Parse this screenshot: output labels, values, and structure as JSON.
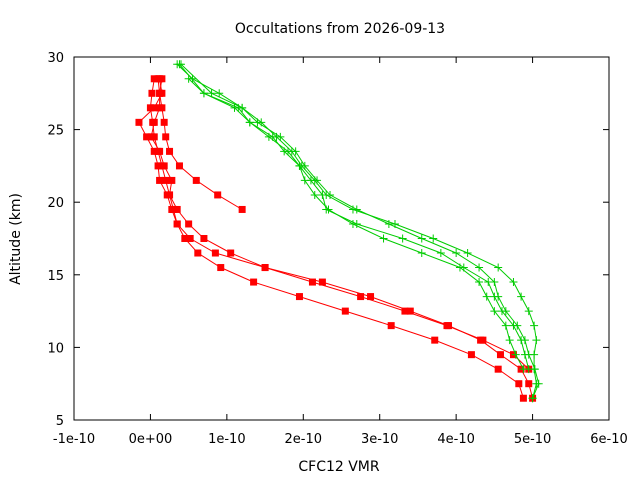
{
  "chart_data": {
    "type": "line",
    "title": "Occultations from 2026-09-13",
    "xlabel": "CFC12 VMR",
    "ylabel": "Altitude (km)",
    "xlim": [
      -1e-10,
      6e-10
    ],
    "ylim": [
      5,
      30
    ],
    "x_ticks": [
      -1e-10,
      0,
      1e-10,
      2e-10,
      3e-10,
      4e-10,
      5e-10,
      6e-10
    ],
    "x_tick_labels": [
      "-1e-10",
      "0e+00",
      "1e-10",
      "2e-10",
      "3e-10",
      "4e-10",
      "5e-10",
      "6e-10"
    ],
    "y_ticks": [
      5,
      10,
      15,
      20,
      25,
      30
    ],
    "y_tick_labels": [
      "5",
      "10",
      "15",
      "20",
      "25",
      "30"
    ],
    "grid": false,
    "legend": "none",
    "colors": {
      "red": "#ff0000",
      "green": "#00cc00"
    },
    "series": [
      {
        "color": "red",
        "marker": "square",
        "points": [
          [
            1.2e-10,
            19.5
          ],
          [
            8.8e-11,
            20.5
          ],
          [
            6e-11,
            21.5
          ],
          [
            3.8e-11,
            22.5
          ],
          [
            2.5e-11,
            23.5
          ],
          [
            2e-11,
            24.5
          ],
          [
            1.8e-11,
            25.5
          ],
          [
            1.5e-11,
            26.5
          ],
          [
            1.2e-11,
            27.5
          ],
          [
            1e-11,
            28.5
          ]
        ]
      },
      {
        "color": "red",
        "marker": "square",
        "points": [
          [
            5e-10,
            6.5
          ],
          [
            4.95e-10,
            7.5
          ],
          [
            4.85e-10,
            8.5
          ],
          [
            4.58e-10,
            9.5
          ],
          [
            4.32e-10,
            10.5
          ],
          [
            3.9e-10,
            11.5
          ],
          [
            3.4e-10,
            12.5
          ],
          [
            2.88e-10,
            13.5
          ],
          [
            2.25e-10,
            14.5
          ],
          [
            1.5e-10,
            15.5
          ],
          [
            1.05e-10,
            16.5
          ],
          [
            7e-11,
            17.5
          ],
          [
            5e-11,
            18.5
          ],
          [
            3.5e-11,
            19.5
          ],
          [
            2.5e-11,
            20.5
          ],
          [
            2e-11,
            21.5
          ],
          [
            1.5e-11,
            22.5
          ],
          [
            1e-11,
            23.5
          ],
          [
            5e-12,
            24.5
          ],
          [
            3e-12,
            25.5
          ],
          [
            0,
            26.5
          ],
          [
            2e-12,
            27.5
          ],
          [
            5e-12,
            28.5
          ]
        ]
      },
      {
        "color": "red",
        "marker": "square",
        "points": [
          [
            4.88e-10,
            6.5
          ],
          [
            4.82e-10,
            7.5
          ],
          [
            4.55e-10,
            8.5
          ],
          [
            4.2e-10,
            9.5
          ],
          [
            3.72e-10,
            10.5
          ],
          [
            3.15e-10,
            11.5
          ],
          [
            2.55e-10,
            12.5
          ],
          [
            1.95e-10,
            13.5
          ],
          [
            1.35e-10,
            14.5
          ],
          [
            9.2e-11,
            15.5
          ],
          [
            6.2e-11,
            16.5
          ],
          [
            4.5e-11,
            17.5
          ],
          [
            3.5e-11,
            18.5
          ],
          [
            2.8e-11,
            19.5
          ],
          [
            2.2e-11,
            20.5
          ],
          [
            1.2e-11,
            21.5
          ],
          [
            1e-11,
            22.5
          ],
          [
            5e-12,
            23.5
          ],
          [
            -5e-12,
            24.5
          ],
          [
            -1.5e-11,
            25.5
          ],
          [
            5e-12,
            26.5
          ],
          [
            1.5e-11,
            27.5
          ],
          [
            1.2e-11,
            28.5
          ]
        ]
      },
      {
        "color": "red",
        "marker": "square",
        "points": [
          [
            4.95e-10,
            8.5
          ],
          [
            4.75e-10,
            9.5
          ],
          [
            4.35e-10,
            10.5
          ],
          [
            3.88e-10,
            11.5
          ],
          [
            3.33e-10,
            12.5
          ],
          [
            2.75e-10,
            13.5
          ],
          [
            2.12e-10,
            14.5
          ],
          [
            1.5e-10,
            15.5
          ],
          [
            8.5e-11,
            16.5
          ],
          [
            5.2e-11,
            17.5
          ],
          [
            3.5e-11,
            18.5
          ],
          [
            3e-11,
            19.5
          ],
          [
            2.5e-11,
            20.5
          ],
          [
            2.8e-11,
            21.5
          ],
          [
            1.8e-11,
            22.5
          ],
          [
            1.2e-11,
            23.5
          ],
          [
            1e-12,
            24.5
          ],
          [
            5e-12,
            25.5
          ],
          [
            1.2e-11,
            26.5
          ],
          [
            1.2e-11,
            27.5
          ],
          [
            1.5e-11,
            28.5
          ]
        ]
      },
      {
        "color": "green",
        "marker": "plus",
        "points": [
          [
            5e-10,
            6.5
          ],
          [
            5.08e-10,
            7.5
          ],
          [
            5.03e-10,
            8.5
          ],
          [
            4.95e-10,
            9.5
          ],
          [
            4.9e-10,
            10.5
          ],
          [
            4.8e-10,
            11.5
          ],
          [
            4.65e-10,
            12.5
          ],
          [
            4.55e-10,
            13.5
          ],
          [
            4.5e-10,
            14.5
          ],
          [
            4.3e-10,
            15.5
          ],
          [
            4e-10,
            16.5
          ],
          [
            3.55e-10,
            17.5
          ],
          [
            3.12e-10,
            18.5
          ],
          [
            2.7e-10,
            19.5
          ],
          [
            2.35e-10,
            20.5
          ],
          [
            2.18e-10,
            21.5
          ],
          [
            2.02e-10,
            22.5
          ],
          [
            1.9e-10,
            23.5
          ],
          [
            1.7e-10,
            24.5
          ],
          [
            1.4e-10,
            25.5
          ],
          [
            1.2e-10,
            26.5
          ],
          [
            8e-11,
            27.5
          ],
          [
            4e-11,
            29.5
          ]
        ]
      },
      {
        "color": "green",
        "marker": "plus",
        "points": [
          [
            5e-10,
            6.5
          ],
          [
            5.05e-10,
            7.5
          ],
          [
            5.02e-10,
            8.5
          ],
          [
            5.02e-10,
            9.5
          ],
          [
            5.05e-10,
            10.5
          ],
          [
            5.02e-10,
            11.5
          ],
          [
            4.95e-10,
            12.5
          ],
          [
            4.85e-10,
            13.5
          ],
          [
            4.75e-10,
            14.5
          ],
          [
            4.55e-10,
            15.5
          ],
          [
            4.15e-10,
            16.5
          ],
          [
            3.7e-10,
            17.5
          ],
          [
            3.2e-10,
            18.5
          ],
          [
            2.65e-10,
            19.5
          ],
          [
            2.3e-10,
            20.5
          ],
          [
            2.15e-10,
            21.5
          ],
          [
            1.98e-10,
            22.5
          ],
          [
            1.85e-10,
            23.5
          ],
          [
            1.65e-10,
            24.5
          ],
          [
            1.45e-10,
            25.5
          ],
          [
            1.2e-10,
            26.5
          ],
          [
            9e-11,
            27.5
          ],
          [
            5.5e-11,
            28.5
          ],
          [
            3.5e-11,
            29.5
          ]
        ]
      },
      {
        "color": "green",
        "marker": "plus",
        "points": [
          [
            4.95e-10,
            8.5
          ],
          [
            4.9e-10,
            9.5
          ],
          [
            4.85e-10,
            10.5
          ],
          [
            4.75e-10,
            11.5
          ],
          [
            4.6e-10,
            12.5
          ],
          [
            4.5e-10,
            13.5
          ],
          [
            4.42e-10,
            14.5
          ],
          [
            4.1e-10,
            15.5
          ],
          [
            3.8e-10,
            16.5
          ],
          [
            3.3e-10,
            17.5
          ],
          [
            2.7e-10,
            18.5
          ],
          [
            2.3e-10,
            19.5
          ],
          [
            2.25e-10,
            20.5
          ],
          [
            2.1e-10,
            21.5
          ],
          [
            1.95e-10,
            22.5
          ],
          [
            1.75e-10,
            23.5
          ],
          [
            1.6e-10,
            24.5
          ],
          [
            1.3e-10,
            25.5
          ],
          [
            1.15e-10,
            26.5
          ],
          [
            7e-11,
            27.5
          ],
          [
            5e-11,
            28.5
          ]
        ]
      },
      {
        "color": "green",
        "marker": "plus",
        "points": [
          [
            4.88e-10,
            8.5
          ],
          [
            4.78e-10,
            9.5
          ],
          [
            4.7e-10,
            10.5
          ],
          [
            4.65e-10,
            11.5
          ],
          [
            4.5e-10,
            12.5
          ],
          [
            4.4e-10,
            13.5
          ],
          [
            4.3e-10,
            14.5
          ],
          [
            4.05e-10,
            15.5
          ],
          [
            3.55e-10,
            16.5
          ],
          [
            3.05e-10,
            17.5
          ],
          [
            2.65e-10,
            18.5
          ],
          [
            2.33e-10,
            19.5
          ],
          [
            2.15e-10,
            20.5
          ],
          [
            2.02e-10,
            21.5
          ],
          [
            1.95e-10,
            22.5
          ],
          [
            1.8e-10,
            23.5
          ],
          [
            1.55e-10,
            24.5
          ],
          [
            1.3e-10,
            25.5
          ],
          [
            1.1e-10,
            26.5
          ],
          [
            7e-11,
            27.5
          ],
          [
            3.8e-11,
            29.5
          ]
        ]
      }
    ]
  }
}
